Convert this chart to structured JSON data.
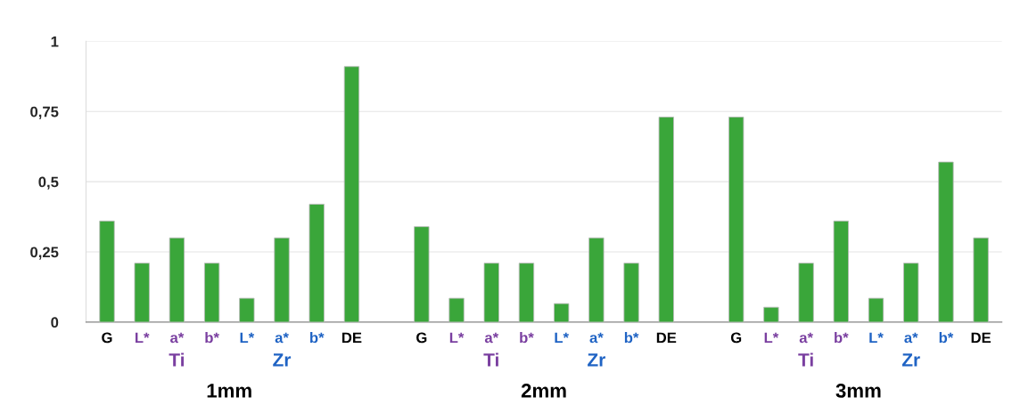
{
  "chart_data": {
    "type": "bar",
    "categories": [
      "G",
      "L*",
      "a*",
      "b*",
      "L*",
      "a*",
      "b*",
      "DE",
      null,
      "G",
      "L*",
      "a*",
      "b*",
      "L*",
      "a*",
      "b*",
      "DE",
      null,
      "G",
      "L*",
      "a*",
      "b*",
      "L*",
      "a*",
      "b*",
      "DE"
    ],
    "series": [
      {
        "color": "#3aa63a",
        "values": [
          0.36,
          0.21,
          0.3,
          0.21,
          0.085,
          0.3,
          0.42,
          0.91,
          null,
          0.34,
          0.085,
          0.21,
          0.21,
          0.066,
          0.3,
          0.21,
          0.73,
          null,
          0.73,
          0.053,
          0.21,
          0.36,
          0.085,
          0.21,
          0.57,
          0.3
        ]
      }
    ],
    "ylim": [
      0,
      1
    ],
    "yticks": [
      0,
      {
        "value": 0.25,
        "label": "0,25"
      },
      {
        "value": 0.5,
        "label": "0,5"
      },
      {
        "value": 0.75,
        "label": "0,75"
      },
      1
    ],
    "grid": "y",
    "annotations": [
      "Ti",
      "Zr",
      "1mm",
      "Ti",
      "Zr",
      "2mm",
      "Ti",
      "Zr",
      "3mm"
    ]
  }
}
